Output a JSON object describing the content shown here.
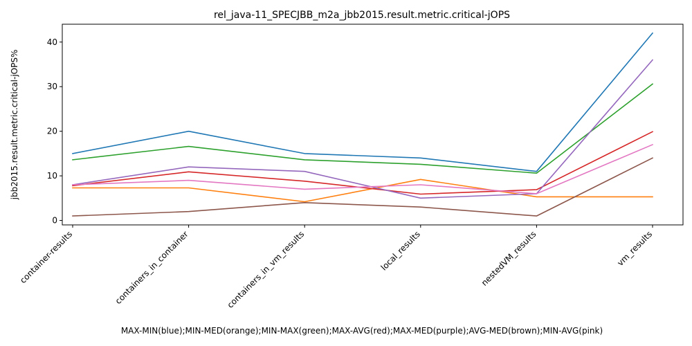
{
  "chart_data": {
    "type": "line",
    "title": "rel_java-11_SPECJBB_m2a_jbb2015.result.metric.critical-jOPS",
    "xlabel": "MAX-MIN(blue);MIN-MED(orange);MIN-MAX(green);MAX-AVG(red);MAX-MED(purple);AVG-MED(brown);MIN-AVG(pink)",
    "ylabel": "jbb2015.result.metric.critical-jOPS%",
    "categories": [
      "container-results",
      "containers_in_container",
      "containers_in_vm_results",
      "local_results",
      "nestedVM_results",
      "vm_results"
    ],
    "ylim": [
      -1,
      44
    ],
    "yticks": [
      0,
      10,
      20,
      30,
      40
    ],
    "grid": false,
    "series": [
      {
        "color": "#1f77b4",
        "values": [
          15.0,
          20.0,
          15.0,
          14.0,
          11.0,
          42.0
        ]
      },
      {
        "color": "#ff7f0e",
        "values": [
          7.3,
          7.3,
          4.2,
          9.2,
          5.3,
          5.3
        ]
      },
      {
        "color": "#2ca02c",
        "values": [
          13.6,
          16.6,
          13.6,
          12.6,
          10.6,
          30.6
        ]
      },
      {
        "color": "#d62728",
        "values": [
          7.8,
          10.9,
          8.8,
          5.9,
          6.9,
          19.9
        ]
      },
      {
        "color": "#9467bd",
        "values": [
          8.0,
          12.0,
          11.0,
          5.0,
          6.0,
          36.0
        ]
      },
      {
        "color": "#8c564b",
        "values": [
          1.0,
          2.0,
          4.0,
          3.0,
          1.0,
          14.0
        ]
      },
      {
        "color": "#e377c2",
        "values": [
          8.0,
          9.0,
          7.0,
          8.0,
          6.0,
          17.0
        ]
      }
    ]
  }
}
